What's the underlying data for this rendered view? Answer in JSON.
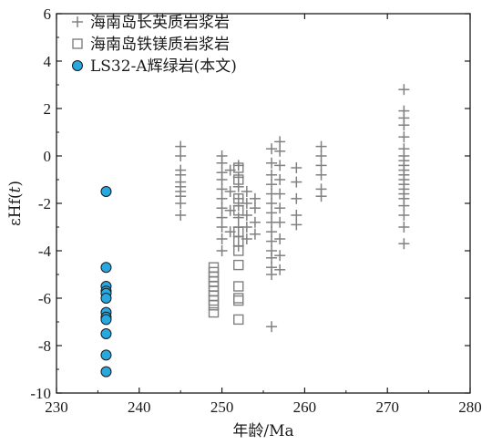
{
  "chart_data": {
    "type": "scatter",
    "xlabel": "年龄/Ma",
    "ylabel": "εHf(t)",
    "xlim": [
      230,
      280
    ],
    "ylim": [
      -10,
      6
    ],
    "xticks": [
      230,
      240,
      250,
      260,
      270,
      280
    ],
    "yticks": [
      -10,
      -8,
      -6,
      -4,
      -2,
      0,
      2,
      4,
      6
    ],
    "legend_position": "top-left",
    "series": [
      {
        "name": "海南岛长英质岩浆岩",
        "marker": "plus",
        "color": "#808080",
        "points": [
          [
            245,
            0.4
          ],
          [
            245,
            0.0
          ],
          [
            245,
            -0.6
          ],
          [
            245,
            -0.8
          ],
          [
            245,
            -1.1
          ],
          [
            245,
            -1.3
          ],
          [
            245,
            -1.5
          ],
          [
            245,
            -1.7
          ],
          [
            245,
            -2.0
          ],
          [
            245,
            -2.5
          ],
          [
            250,
            0.0
          ],
          [
            250,
            -0.3
          ],
          [
            250,
            -0.7
          ],
          [
            250,
            -1.0
          ],
          [
            250,
            -1.4
          ],
          [
            250,
            -1.8
          ],
          [
            250,
            -2.2
          ],
          [
            250,
            -2.6
          ],
          [
            250,
            -3.0
          ],
          [
            250,
            -3.5
          ],
          [
            250,
            -4.0
          ],
          [
            251,
            -0.6
          ],
          [
            251,
            -1.5
          ],
          [
            251,
            -2.3
          ],
          [
            251,
            -3.2
          ],
          [
            252,
            -0.4
          ],
          [
            252,
            -0.9
          ],
          [
            252,
            -1.3
          ],
          [
            252,
            -1.8
          ],
          [
            252,
            -2.1
          ],
          [
            252,
            -2.6
          ],
          [
            252,
            -3.0
          ],
          [
            252,
            -3.4
          ],
          [
            252,
            -3.8
          ],
          [
            253,
            -1.5
          ],
          [
            253,
            -2.0
          ],
          [
            253,
            -2.5
          ],
          [
            253,
            -3.0
          ],
          [
            253,
            -3.5
          ],
          [
            254,
            -1.8
          ],
          [
            254,
            -2.2
          ],
          [
            254,
            -2.8
          ],
          [
            254,
            -3.3
          ],
          [
            256,
            0.3
          ],
          [
            256,
            -0.3
          ],
          [
            256,
            -0.8
          ],
          [
            256,
            -1.2
          ],
          [
            256,
            -1.6
          ],
          [
            256,
            -2.0
          ],
          [
            256,
            -2.4
          ],
          [
            256,
            -2.8
          ],
          [
            256,
            -3.2
          ],
          [
            256,
            -3.6
          ],
          [
            256,
            -4.0
          ],
          [
            256,
            -4.3
          ],
          [
            256,
            -4.7
          ],
          [
            256,
            -5.0
          ],
          [
            256,
            -7.2
          ],
          [
            257,
            0.6
          ],
          [
            257,
            0.2
          ],
          [
            257,
            -0.4
          ],
          [
            257,
            -1.0
          ],
          [
            257,
            -1.6
          ],
          [
            257,
            -2.2
          ],
          [
            257,
            -2.8
          ],
          [
            257,
            -3.5
          ],
          [
            257,
            -4.2
          ],
          [
            257,
            -4.8
          ],
          [
            259,
            -0.5
          ],
          [
            259,
            -1.1
          ],
          [
            259,
            -1.8
          ],
          [
            259,
            -2.5
          ],
          [
            259,
            -2.9
          ],
          [
            262,
            0.4
          ],
          [
            262,
            0.0
          ],
          [
            262,
            -0.4
          ],
          [
            262,
            -0.8
          ],
          [
            262,
            -1.4
          ],
          [
            262,
            -1.7
          ],
          [
            272,
            2.8
          ],
          [
            272,
            1.9
          ],
          [
            272,
            1.6
          ],
          [
            272,
            1.3
          ],
          [
            272,
            0.8
          ],
          [
            272,
            0.3
          ],
          [
            272,
            0.0
          ],
          [
            272,
            -0.2
          ],
          [
            272,
            -0.4
          ],
          [
            272,
            -0.6
          ],
          [
            272,
            -0.8
          ],
          [
            272,
            -1.0
          ],
          [
            272,
            -1.2
          ],
          [
            272,
            -1.4
          ],
          [
            272,
            -1.6
          ],
          [
            272,
            -1.8
          ],
          [
            272,
            -2.1
          ],
          [
            272,
            -2.5
          ],
          [
            272,
            -3.0
          ],
          [
            272,
            -3.7
          ]
        ]
      },
      {
        "name": "海南岛铁镁质岩浆岩",
        "marker": "square",
        "color": "#808080",
        "points": [
          [
            249,
            -4.7
          ],
          [
            249,
            -4.9
          ],
          [
            249,
            -5.1
          ],
          [
            249,
            -5.3
          ],
          [
            249,
            -5.5
          ],
          [
            249,
            -5.7
          ],
          [
            249,
            -5.9
          ],
          [
            249,
            -6.1
          ],
          [
            249,
            -6.3
          ],
          [
            249,
            -6.6
          ],
          [
            252,
            -0.5
          ],
          [
            252,
            -1.0
          ],
          [
            252,
            -1.8
          ],
          [
            252,
            -2.3
          ],
          [
            252,
            -3.2
          ],
          [
            252,
            -3.6
          ],
          [
            252,
            -4.0
          ],
          [
            252,
            -4.6
          ],
          [
            252,
            -5.5
          ],
          [
            252,
            -6.0
          ],
          [
            252,
            -6.1
          ],
          [
            252,
            -6.9
          ]
        ]
      },
      {
        "name": "LS32-A辉绿岩(本文)",
        "marker": "circle",
        "color": "#29a8e0",
        "points": [
          [
            236,
            -1.5
          ],
          [
            236,
            -4.7
          ],
          [
            236,
            -5.5
          ],
          [
            236,
            -5.7
          ],
          [
            236,
            -5.8
          ],
          [
            236,
            -6.0
          ],
          [
            236,
            -6.6
          ],
          [
            236,
            -6.8
          ],
          [
            236,
            -6.9
          ],
          [
            236,
            -7.5
          ],
          [
            236,
            -8.4
          ],
          [
            236,
            -9.1
          ]
        ]
      }
    ]
  }
}
